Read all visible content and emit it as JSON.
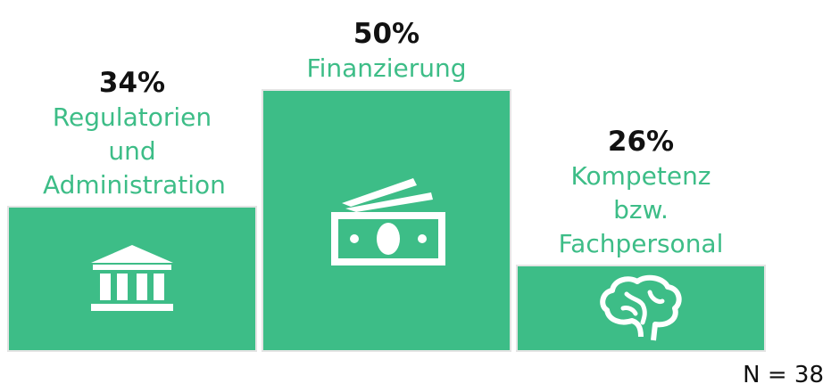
{
  "chart_data": {
    "type": "bar",
    "categories": [
      "Regulatorien und Administration",
      "Finanzierung",
      "Kompetenz bzw. Fachpersonal"
    ],
    "values": [
      34,
      50,
      26
    ],
    "value_labels": [
      "34%",
      "50%",
      "26%"
    ],
    "color": "#3dbd87",
    "ylim": [
      14,
      50
    ],
    "annotation": "N = 38"
  }
}
